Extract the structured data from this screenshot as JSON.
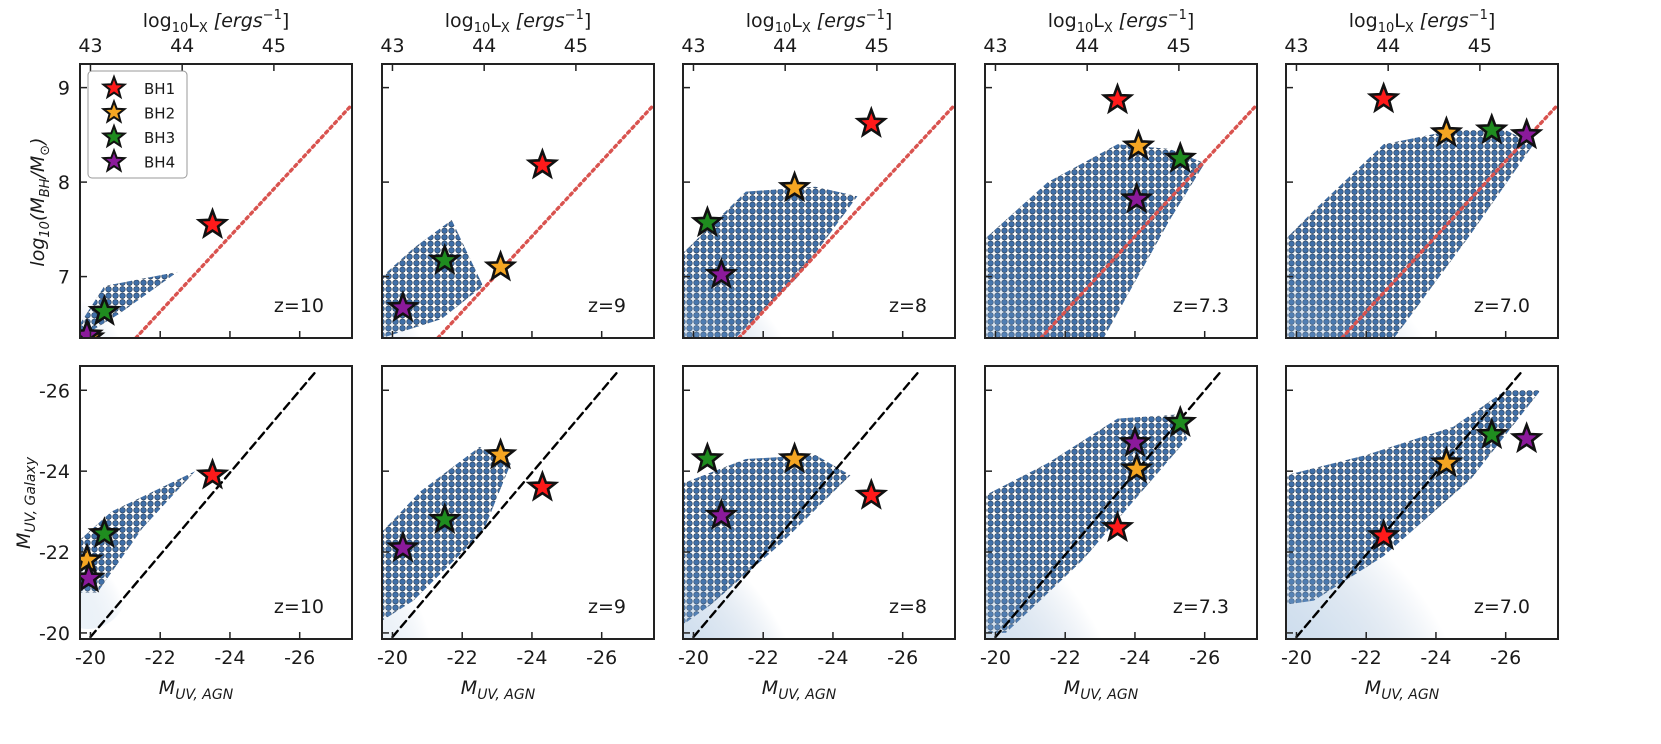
{
  "chart_data": {
    "type": "scatter",
    "layout": "2 rows x 5 columns of panels",
    "x_bottom": {
      "label_main": "M",
      "label_sub": "UV, AGN",
      "ticks": [
        "-20",
        "-22",
        "-24",
        "-26"
      ],
      "tick_values": [
        -20,
        -22,
        -24,
        -26
      ],
      "xlim": [
        -19.7,
        -27.5
      ]
    },
    "x_top": {
      "label_prefix": "log",
      "label_base": "10",
      "label_var": "L",
      "label_var_sub": "X",
      "label_unit": "[ergs",
      "label_exp": "−1",
      "label_close": "]",
      "ticks": [
        "43",
        "44",
        "45"
      ],
      "tick_values": [
        43,
        44,
        45
      ]
    },
    "top_row": {
      "ylabel_prefix": "log",
      "ylabel_base": "10",
      "ylabel_body": "(M",
      "ylabel_sub": "BH",
      "ylabel_mid": "/M",
      "ylabel_sun": "⊙",
      "ylabel_close": ")",
      "ticks": [
        "7",
        "8",
        "9"
      ],
      "tick_values": [
        7,
        8,
        9
      ],
      "ylim": [
        6.35,
        9.25
      ]
    },
    "bottom_row": {
      "ylabel_main": "M",
      "ylabel_sub": "UV, Galaxy",
      "ticks": [
        "-20",
        "-22",
        "-24",
        "-26"
      ],
      "tick_values": [
        -20,
        -22,
        -24,
        -26
      ],
      "ylim": [
        -19.85,
        -26.6
      ]
    },
    "legend": {
      "position": "upper-left of first top panel",
      "entries": [
        {
          "name": "BH1",
          "color": "#ff1a1a"
        },
        {
          "name": "BH2",
          "color": "#f5a623"
        },
        {
          "name": "BH3",
          "color": "#1f8c1f"
        },
        {
          "name": "BH4",
          "color": "#8b1a9b"
        }
      ]
    },
    "reference_lines": {
      "top": {
        "style": "dotted",
        "color": "#d9534f",
        "points": [
          [
            -21.3,
            6.35
          ],
          [
            -27.5,
            8.82
          ]
        ]
      },
      "bottom": {
        "style": "dashed",
        "color": "#000000",
        "points": [
          [
            -20,
            -19.9
          ],
          [
            -26.5,
            -26.5
          ]
        ]
      }
    },
    "panels": [
      {
        "z": "z=10",
        "top_stars": [
          [
            -23.5,
            7.55
          ],
          [
            -19.95,
            6.35
          ],
          [
            -20.4,
            6.63
          ],
          [
            -19.9,
            6.38
          ]
        ],
        "bottom_stars": [
          [
            -23.5,
            -23.9
          ],
          [
            -19.9,
            -21.8
          ],
          [
            -20.4,
            -22.45
          ],
          [
            -19.95,
            -21.35
          ]
        ],
        "top_cloud": [
          [
            -19.7,
            6.35
          ],
          [
            -20.8,
            6.6
          ],
          [
            -22.5,
            7.05
          ],
          [
            -20.4,
            6.9
          ],
          [
            -19.7,
            6.5
          ]
        ],
        "bottom_cloud": [
          [
            -19.7,
            -21.0
          ],
          [
            -20.2,
            -21.0
          ],
          [
            -21.5,
            -22.6
          ],
          [
            -23.0,
            -24.0
          ],
          [
            -20.6,
            -23.0
          ],
          [
            -19.7,
            -22.3
          ]
        ]
      },
      {
        "z": "z=9",
        "top_stars": [
          [
            -24.3,
            8.18
          ],
          [
            -23.1,
            7.1
          ],
          [
            -21.5,
            7.17
          ],
          [
            -20.3,
            6.67
          ]
        ],
        "bottom_stars": [
          [
            -24.3,
            -23.6
          ],
          [
            -23.1,
            -24.4
          ],
          [
            -21.5,
            -22.8
          ],
          [
            -20.3,
            -22.1
          ]
        ],
        "top_cloud": [
          [
            -19.7,
            6.35
          ],
          [
            -21.4,
            6.55
          ],
          [
            -22.6,
            6.9
          ],
          [
            -21.7,
            7.6
          ],
          [
            -20.6,
            7.3
          ],
          [
            -19.7,
            7.0
          ]
        ],
        "bottom_cloud": [
          [
            -19.7,
            -20.3
          ],
          [
            -20.6,
            -20.8
          ],
          [
            -22.6,
            -22.5
          ],
          [
            -23.4,
            -24.2
          ],
          [
            -22.5,
            -24.6
          ],
          [
            -20.8,
            -23.5
          ],
          [
            -19.7,
            -22.5
          ]
        ]
      },
      {
        "z": "z=8",
        "top_stars": [
          [
            -25.1,
            8.62
          ],
          [
            -22.9,
            7.94
          ],
          [
            -20.4,
            7.57
          ],
          [
            -20.8,
            7.02
          ]
        ],
        "bottom_stars": [
          [
            -25.1,
            -23.4
          ],
          [
            -22.9,
            -24.3
          ],
          [
            -20.4,
            -24.3
          ],
          [
            -20.8,
            -22.9
          ]
        ],
        "top_cloud": [
          [
            -19.7,
            6.35
          ],
          [
            -21.2,
            6.35
          ],
          [
            -23.0,
            7.0
          ],
          [
            -24.7,
            7.85
          ],
          [
            -23.5,
            7.95
          ],
          [
            -21.5,
            7.9
          ],
          [
            -19.7,
            7.25
          ]
        ],
        "bottom_cloud": [
          [
            -19.7,
            -20.2
          ],
          [
            -20.5,
            -20.7
          ],
          [
            -22.5,
            -22.2
          ],
          [
            -24.5,
            -23.9
          ],
          [
            -23.5,
            -24.4
          ],
          [
            -21.5,
            -24.3
          ],
          [
            -19.7,
            -23.7
          ]
        ]
      },
      {
        "z": "z=7.3",
        "top_stars": [
          [
            -23.5,
            8.87
          ],
          [
            -24.1,
            8.38
          ],
          [
            -25.3,
            8.25
          ],
          [
            -24.05,
            7.82
          ]
        ],
        "bottom_stars": [
          [
            -23.5,
            -22.6
          ],
          [
            -24.05,
            -24.05
          ],
          [
            -25.3,
            -25.2
          ],
          [
            -24.0,
            -24.7
          ]
        ],
        "top_cloud": [
          [
            -19.7,
            6.35
          ],
          [
            -23.1,
            6.35
          ],
          [
            -25.0,
            7.6
          ],
          [
            -26.0,
            8.2
          ],
          [
            -25.0,
            8.35
          ],
          [
            -23.5,
            8.4
          ],
          [
            -21.5,
            8.0
          ],
          [
            -19.7,
            7.4
          ]
        ],
        "bottom_cloud": [
          [
            -19.7,
            -20.0
          ],
          [
            -20.3,
            -20.0
          ],
          [
            -22.5,
            -21.8
          ],
          [
            -25.5,
            -24.8
          ],
          [
            -25.2,
            -25.4
          ],
          [
            -23.5,
            -25.3
          ],
          [
            -21.5,
            -24.2
          ],
          [
            -19.7,
            -23.4
          ]
        ]
      },
      {
        "z": "z=7.0",
        "top_stars": [
          [
            -22.5,
            8.88
          ],
          [
            -24.3,
            8.52
          ],
          [
            -25.6,
            8.55
          ],
          [
            -26.6,
            8.5
          ]
        ],
        "bottom_stars": [
          [
            -22.5,
            -22.4
          ],
          [
            -24.3,
            -24.2
          ],
          [
            -25.6,
            -24.9
          ],
          [
            -26.6,
            -24.8
          ]
        ],
        "top_cloud": [
          [
            -19.7,
            6.35
          ],
          [
            -22.8,
            6.35
          ],
          [
            -25.0,
            7.45
          ],
          [
            -26.8,
            8.4
          ],
          [
            -26.0,
            8.55
          ],
          [
            -24.5,
            8.55
          ],
          [
            -22.5,
            8.4
          ],
          [
            -20.5,
            7.7
          ],
          [
            -19.7,
            7.4
          ]
        ],
        "bottom_cloud": [
          [
            -19.7,
            -20.7
          ],
          [
            -20.5,
            -20.8
          ],
          [
            -22.5,
            -21.9
          ],
          [
            -25.0,
            -23.8
          ],
          [
            -27.0,
            -26.0
          ],
          [
            -26.0,
            -26.0
          ],
          [
            -24.5,
            -25.1
          ],
          [
            -22.0,
            -24.4
          ],
          [
            -19.7,
            -23.9
          ]
        ]
      }
    ]
  }
}
